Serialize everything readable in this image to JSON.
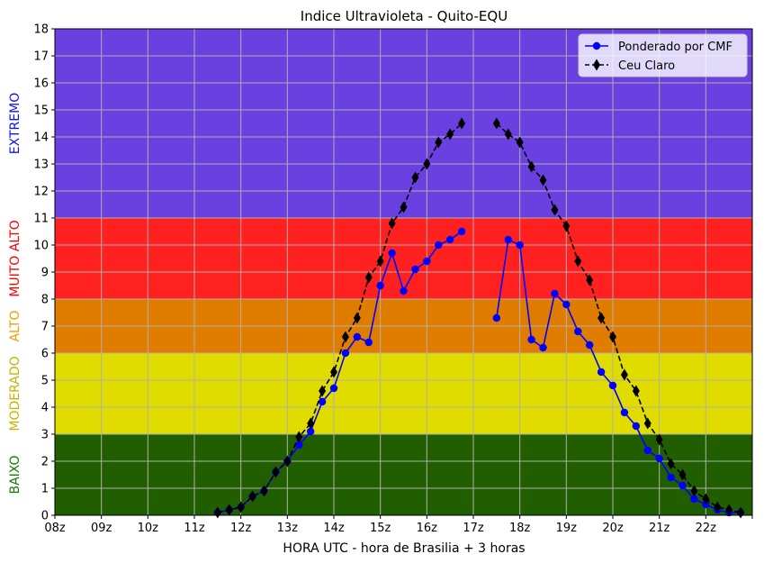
{
  "chart_data": {
    "type": "line",
    "title": "Indice Ultravioleta - Quito-EQU",
    "xlabel": "HORA UTC - hora de Brasilia + 3 horas",
    "ylabel": "",
    "xlim": [
      8,
      23
    ],
    "ylim": [
      0,
      18
    ],
    "x_ticks": [
      "08z",
      "09z",
      "10z",
      "11z",
      "12z",
      "13z",
      "14z",
      "15z",
      "16z",
      "17z",
      "18z",
      "19z",
      "20z",
      "21z",
      "22z"
    ],
    "y_ticks": [
      0,
      1,
      2,
      3,
      4,
      5,
      6,
      7,
      8,
      9,
      10,
      11,
      12,
      13,
      14,
      15,
      16,
      17,
      18
    ],
    "grid": true,
    "legend_position": "top-right",
    "bands": [
      {
        "label": "BAIXO",
        "from": 0,
        "to": 3,
        "color": "#215e00",
        "label_color": "#1a7a00"
      },
      {
        "label": "MODERADO",
        "from": 3,
        "to": 6,
        "color": "#e0dc00",
        "label_color": "#c9b300"
      },
      {
        "label": "ALTO",
        "from": 6,
        "to": 8,
        "color": "#e07c00",
        "label_color": "#f0a000"
      },
      {
        "label": "MUITO ALTO",
        "from": 8,
        "to": 11,
        "color": "#ff2020",
        "label_color": "#ff0000"
      },
      {
        "label": "EXTREMO",
        "from": 11,
        "to": 18,
        "color": "#6a40e0",
        "label_color": "#1010ff"
      }
    ],
    "series": [
      {
        "name": "Ponderado por CMF",
        "color": "#0000ff",
        "marker": "circle",
        "style": "solid",
        "segments": [
          {
            "x": [
              11.5,
              11.75,
              12.0,
              12.25,
              12.5,
              12.75,
              13.0,
              13.25,
              13.5,
              13.75,
              14.0,
              14.25,
              14.5,
              14.75,
              15.0,
              15.25,
              15.5,
              15.75,
              16.0,
              16.25,
              16.5,
              16.75
            ],
            "y": [
              0.1,
              0.2,
              0.3,
              0.7,
              0.9,
              1.6,
              2.0,
              2.6,
              3.1,
              4.2,
              4.7,
              6.0,
              6.6,
              6.4,
              8.5,
              9.7,
              8.3,
              9.1,
              9.4,
              10.0,
              10.2,
              10.5
            ]
          },
          {
            "x": [
              17.5,
              17.75,
              18.0,
              18.25,
              18.5,
              18.75,
              19.0,
              19.25,
              19.5,
              19.75,
              20.0,
              20.25,
              20.5,
              20.75,
              21.0,
              21.25,
              21.5,
              21.75,
              22.0,
              22.25,
              22.5,
              22.75
            ],
            "y": [
              7.3,
              10.2,
              10.0,
              6.5,
              6.2,
              8.2,
              7.8,
              6.8,
              6.3,
              5.3,
              4.8,
              3.8,
              3.3,
              2.4,
              2.1,
              1.4,
              1.1,
              0.6,
              0.4,
              0.2,
              0.1,
              0.1
            ]
          }
        ]
      },
      {
        "name": "Ceu Claro",
        "color": "#000000",
        "marker": "diamond",
        "style": "dashed",
        "segments": [
          {
            "x": [
              11.5,
              11.75,
              12.0,
              12.25,
              12.5,
              12.75,
              13.0,
              13.25,
              13.5,
              13.75,
              14.0,
              14.25,
              14.5,
              14.75,
              15.0,
              15.25,
              15.5,
              15.75,
              16.0,
              16.25,
              16.5,
              16.75
            ],
            "y": [
              0.1,
              0.2,
              0.3,
              0.7,
              0.9,
              1.6,
              2.0,
              2.9,
              3.4,
              4.6,
              5.3,
              6.6,
              7.3,
              8.8,
              9.4,
              10.8,
              11.4,
              12.5,
              13.0,
              13.8,
              14.1,
              14.5
            ]
          },
          {
            "x": [
              17.5,
              17.75,
              18.0,
              18.25,
              18.5,
              18.75,
              19.0,
              19.25,
              19.5,
              19.75,
              20.0,
              20.25,
              20.5,
              20.75,
              21.0,
              21.25,
              21.5,
              21.75,
              22.0,
              22.25,
              22.5,
              22.75
            ],
            "y": [
              14.5,
              14.1,
              13.8,
              12.9,
              12.4,
              11.3,
              10.7,
              9.4,
              8.7,
              7.3,
              6.6,
              5.2,
              4.6,
              3.4,
              2.8,
              1.9,
              1.5,
              0.9,
              0.6,
              0.3,
              0.2,
              0.1
            ]
          }
        ]
      }
    ]
  }
}
